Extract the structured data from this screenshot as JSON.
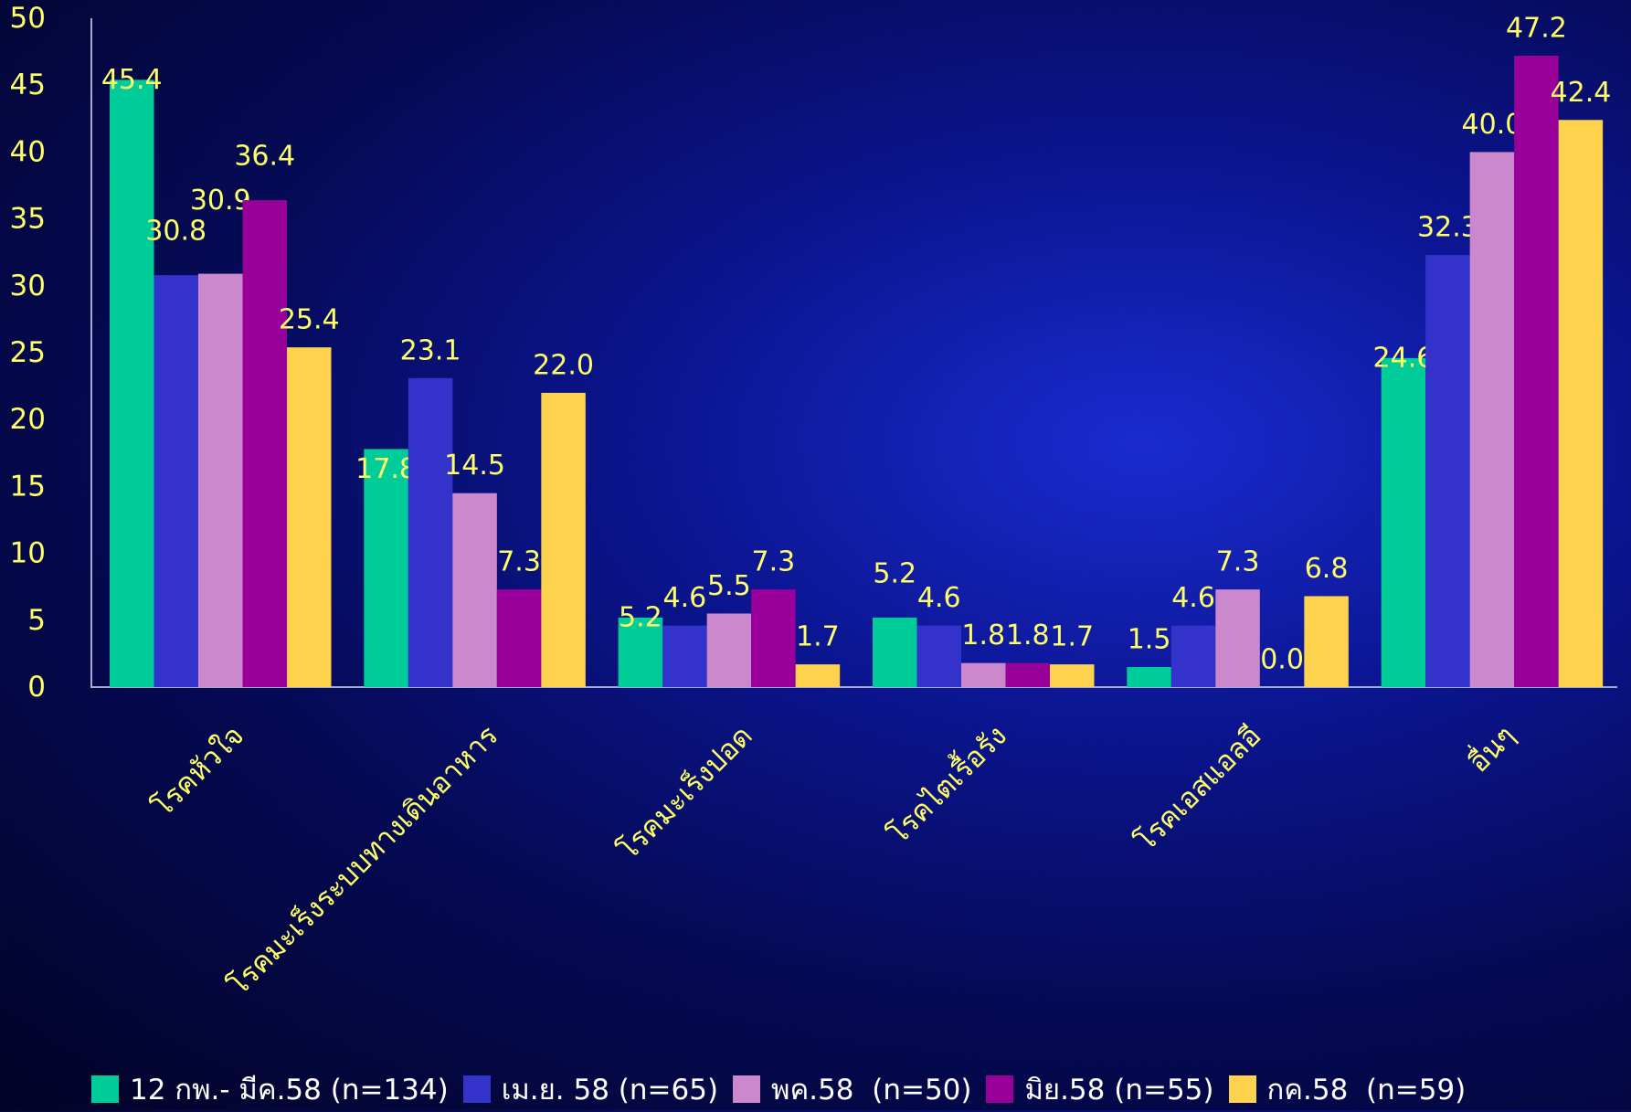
{
  "chart_data": {
    "type": "bar",
    "title": "",
    "xlabel": "",
    "ylabel": "",
    "ylim": [
      0,
      50
    ],
    "yticks": [
      0,
      5,
      10,
      15,
      20,
      25,
      30,
      35,
      40,
      45,
      50
    ],
    "grid": false,
    "legend_position": "bottom",
    "categories": [
      "โรคหัวใจ",
      "โรคมะเร็งระบบทางเดินอาหาร",
      "โรคมะเร็งปอด",
      "โรคไตเรื้อรัง",
      "โรคเอสแอลอี",
      "อื่นๆ"
    ],
    "series": [
      {
        "name": "12 กพ.- มีค.58 (n=134)",
        "color": "#00cc99",
        "values": [
          45.4,
          17.8,
          5.2,
          5.2,
          1.5,
          24.6
        ],
        "labels": [
          "45.4",
          "17.8",
          "5.2",
          "5.2",
          "1.5",
          "24.6"
        ]
      },
      {
        "name": "เม.ย. 58 (n=65)",
        "color": "#3333cc",
        "values": [
          30.8,
          23.1,
          4.6,
          4.6,
          4.6,
          32.3
        ],
        "labels": [
          "30.8",
          "23.1",
          "4.6",
          "4.6",
          "4.6",
          "32.3"
        ]
      },
      {
        "name": "พค.58  (n=50)",
        "color": "#cc88cc",
        "values": [
          30.9,
          14.5,
          5.5,
          1.8,
          7.3,
          40.0
        ],
        "labels": [
          "30.9",
          "14.5",
          "5.5",
          "1.8",
          "7.3",
          "40.0"
        ]
      },
      {
        "name": "มิย.58 (n=55)",
        "color": "#990099",
        "values": [
          36.4,
          7.3,
          7.3,
          1.8,
          0.0,
          47.2
        ],
        "labels": [
          "36.4",
          "7.3",
          "7.3",
          "1.8",
          "0.0",
          "47.2"
        ]
      },
      {
        "name": "กค.58  (n=59)",
        "color": "#ffd24d",
        "values": [
          25.4,
          22.0,
          1.7,
          1.7,
          6.8,
          42.4
        ],
        "labels": [
          "25.4",
          "22.0",
          "1.7",
          "1.7",
          "6.8",
          "42.4"
        ]
      }
    ],
    "colors": {
      "tick_text": "#ffff66",
      "data_label": "#ffff66",
      "category_text": "#ffff66",
      "legend_text": "#ffffff",
      "axis_line": "#aaaacc"
    }
  }
}
